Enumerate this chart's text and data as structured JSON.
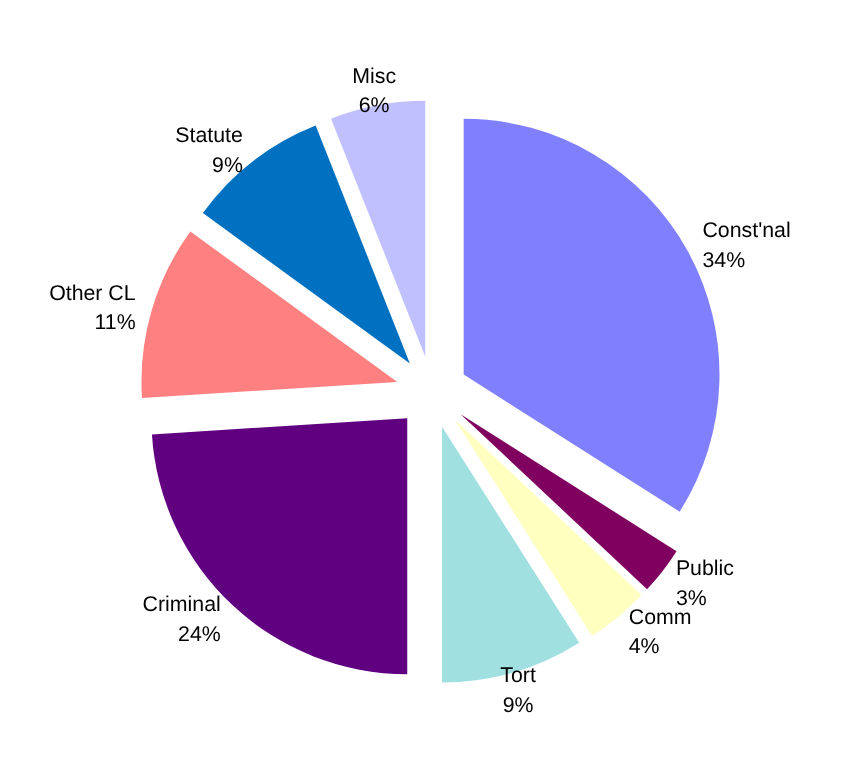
{
  "chart_data": {
    "type": "pie",
    "categories": [
      "Const'nal",
      "Public",
      "Comm",
      "Tort",
      "Criminal",
      "Other CL",
      "Statute",
      "Misc"
    ],
    "values": [
      34,
      3,
      4,
      9,
      24,
      11,
      9,
      6
    ],
    "value_labels": [
      "34%",
      "3%",
      "4%",
      "9%",
      "24%",
      "11%",
      "9%",
      "6%"
    ],
    "colors": [
      "#8080ff",
      "#800060",
      "#ffffc0",
      "#a0e0e0",
      "#600080",
      "#ff8080",
      "#0070c0",
      "#c0c0ff"
    ]
  }
}
